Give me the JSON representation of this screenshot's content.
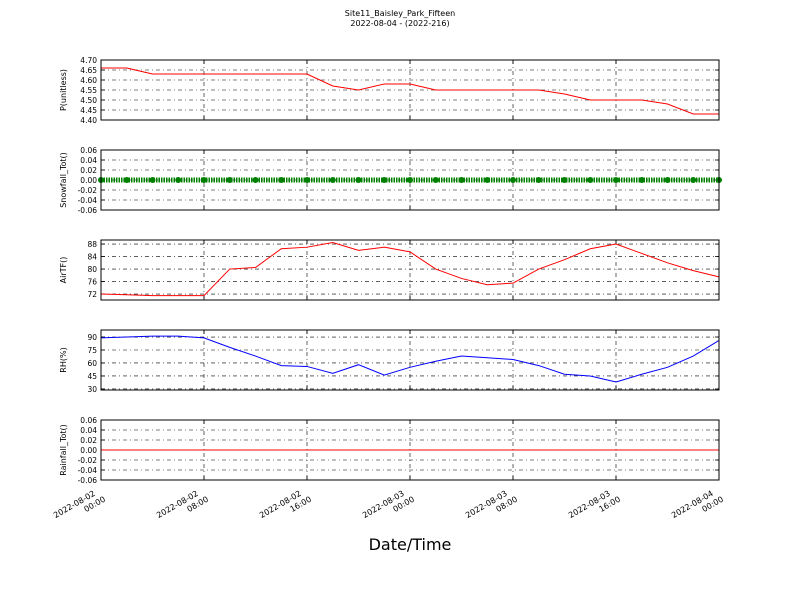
{
  "title": "Site11_Baisley_Park_Fifteen",
  "subtitle": "2022-08-04 - (2022-216)",
  "xlabel": "Date/Time",
  "chart_data": [
    {
      "type": "line",
      "ylabel": "P(unitless)",
      "color": "#ff0000",
      "grid": true,
      "x": [
        "2022-08-02 00:00",
        "2022-08-02 02:00",
        "2022-08-02 04:00",
        "2022-08-02 06:00",
        "2022-08-02 08:00",
        "2022-08-02 10:00",
        "2022-08-02 12:00",
        "2022-08-02 14:00",
        "2022-08-02 16:00",
        "2022-08-02 18:00",
        "2022-08-02 20:00",
        "2022-08-02 22:00",
        "2022-08-03 00:00",
        "2022-08-03 02:00",
        "2022-08-03 04:00",
        "2022-08-03 06:00",
        "2022-08-03 08:00",
        "2022-08-03 10:00",
        "2022-08-03 12:00",
        "2022-08-03 14:00",
        "2022-08-03 16:00",
        "2022-08-03 18:00",
        "2022-08-03 20:00",
        "2022-08-03 22:00",
        "2022-08-04 00:00"
      ],
      "values": [
        4.66,
        4.66,
        4.63,
        4.63,
        4.63,
        4.63,
        4.63,
        4.63,
        4.63,
        4.57,
        4.55,
        4.58,
        4.58,
        4.55,
        4.55,
        4.55,
        4.55,
        4.55,
        4.53,
        4.5,
        4.5,
        4.5,
        4.48,
        4.43,
        4.43
      ],
      "xlim": [
        "2022-08-02 00:00",
        "2022-08-04 00:00"
      ],
      "xticks": [
        "2022-08-02 00:00",
        "2022-08-02 08:00",
        "2022-08-02 16:00",
        "2022-08-03 00:00",
        "2022-08-03 08:00",
        "2022-08-03 16:00",
        "2022-08-04 00:00"
      ],
      "ylim": [
        4.4,
        4.7
      ],
      "yticks": [
        {
          "value": 4.4,
          "label": "4.40"
        },
        4.45,
        {
          "value": 4.5,
          "label": "4.50"
        },
        4.55,
        {
          "value": 4.6,
          "label": "4.60"
        },
        4.65,
        {
          "value": 4.7,
          "label": "4.70"
        }
      ]
    },
    {
      "type": "line",
      "style": "marker",
      "ylabel": "Snowfall_Tot()",
      "color": "#008000",
      "grid": true,
      "x": [
        "2022-08-02 00:00",
        "2022-08-02 02:00",
        "2022-08-02 04:00",
        "2022-08-02 06:00",
        "2022-08-02 08:00",
        "2022-08-02 10:00",
        "2022-08-02 12:00",
        "2022-08-02 14:00",
        "2022-08-02 16:00",
        "2022-08-02 18:00",
        "2022-08-02 20:00",
        "2022-08-02 22:00",
        "2022-08-03 00:00",
        "2022-08-03 02:00",
        "2022-08-03 04:00",
        "2022-08-03 06:00",
        "2022-08-03 08:00",
        "2022-08-03 10:00",
        "2022-08-03 12:00",
        "2022-08-03 14:00",
        "2022-08-03 16:00",
        "2022-08-03 18:00",
        "2022-08-03 20:00",
        "2022-08-03 22:00",
        "2022-08-04 00:00"
      ],
      "values": [
        0,
        0,
        0,
        0,
        0,
        0,
        0,
        0,
        0,
        0,
        0,
        0,
        0,
        0,
        0,
        0,
        0,
        0,
        0,
        0,
        0,
        0,
        0,
        0,
        0
      ],
      "xlim": [
        "2022-08-02 00:00",
        "2022-08-04 00:00"
      ],
      "xticks": [
        "2022-08-02 00:00",
        "2022-08-02 08:00",
        "2022-08-02 16:00",
        "2022-08-03 00:00",
        "2022-08-03 08:00",
        "2022-08-03 16:00",
        "2022-08-04 00:00"
      ],
      "ylim": [
        -0.06,
        0.06
      ],
      "yticks": [
        -0.06,
        -0.04,
        -0.02,
        {
          "value": 0,
          "label": "0.00"
        },
        0.02,
        0.04,
        0.06
      ]
    },
    {
      "type": "line",
      "ylabel": "AirTF()",
      "color": "#ff0000",
      "grid": true,
      "x": [
        "2022-08-02 00:00",
        "2022-08-02 02:00",
        "2022-08-02 04:00",
        "2022-08-02 06:00",
        "2022-08-02 08:00",
        "2022-08-02 10:00",
        "2022-08-02 12:00",
        "2022-08-02 14:00",
        "2022-08-02 16:00",
        "2022-08-02 18:00",
        "2022-08-02 20:00",
        "2022-08-02 22:00",
        "2022-08-03 00:00",
        "2022-08-03 02:00",
        "2022-08-03 04:00",
        "2022-08-03 06:00",
        "2022-08-03 08:00",
        "2022-08-03 10:00",
        "2022-08-03 12:00",
        "2022-08-03 14:00",
        "2022-08-03 16:00",
        "2022-08-03 18:00",
        "2022-08-03 20:00",
        "2022-08-03 22:00",
        "2022-08-04 00:00"
      ],
      "values": [
        72,
        71.8,
        71.5,
        71.5,
        71.5,
        80,
        80.5,
        86.5,
        87,
        88.5,
        86,
        87,
        85.5,
        80,
        77,
        75,
        75.5,
        80,
        83,
        86.5,
        88,
        85,
        82,
        79.5,
        77.5
      ],
      "xlim": [
        "2022-08-02 00:00",
        "2022-08-04 00:00"
      ],
      "xticks": [
        "2022-08-02 00:00",
        "2022-08-02 08:00",
        "2022-08-02 16:00",
        "2022-08-03 00:00",
        "2022-08-03 08:00",
        "2022-08-03 16:00",
        "2022-08-04 00:00"
      ],
      "ylim": [
        70.1,
        89.3
      ],
      "yticks": [
        72,
        76,
        80,
        84,
        88
      ]
    },
    {
      "type": "line",
      "ylabel": "RH(%)",
      "color": "#0000ff",
      "grid": true,
      "x": [
        "2022-08-02 00:00",
        "2022-08-02 02:00",
        "2022-08-02 04:00",
        "2022-08-02 06:00",
        "2022-08-02 08:00",
        "2022-08-02 10:00",
        "2022-08-02 12:00",
        "2022-08-02 14:00",
        "2022-08-02 16:00",
        "2022-08-02 18:00",
        "2022-08-02 20:00",
        "2022-08-02 22:00",
        "2022-08-03 00:00",
        "2022-08-03 02:00",
        "2022-08-03 04:00",
        "2022-08-03 06:00",
        "2022-08-03 08:00",
        "2022-08-03 10:00",
        "2022-08-03 12:00",
        "2022-08-03 14:00",
        "2022-08-03 16:00",
        "2022-08-03 18:00",
        "2022-08-03 20:00",
        "2022-08-03 22:00",
        "2022-08-04 00:00"
      ],
      "values": [
        89,
        90,
        91,
        91,
        89,
        78,
        68,
        57,
        56,
        48,
        58,
        46,
        55,
        62,
        68,
        66,
        64,
        57,
        47,
        45,
        38,
        47,
        55,
        68,
        86
      ],
      "xlim": [
        "2022-08-02 00:00",
        "2022-08-04 00:00"
      ],
      "xticks": [
        "2022-08-02 00:00",
        "2022-08-02 08:00",
        "2022-08-02 16:00",
        "2022-08-03 00:00",
        "2022-08-03 08:00",
        "2022-08-03 16:00",
        "2022-08-04 00:00"
      ],
      "ylim": [
        28.8,
        98.1
      ],
      "yticks": [
        30,
        45,
        60,
        75,
        90
      ]
    },
    {
      "type": "line",
      "ylabel": "Rainfall_Tot()",
      "color": "#ff0000",
      "grid": true,
      "x": [
        "2022-08-02 00:00",
        "2022-08-02 02:00",
        "2022-08-02 04:00",
        "2022-08-02 06:00",
        "2022-08-02 08:00",
        "2022-08-02 10:00",
        "2022-08-02 12:00",
        "2022-08-02 14:00",
        "2022-08-02 16:00",
        "2022-08-02 18:00",
        "2022-08-02 20:00",
        "2022-08-02 22:00",
        "2022-08-03 00:00",
        "2022-08-03 02:00",
        "2022-08-03 04:00",
        "2022-08-03 06:00",
        "2022-08-03 08:00",
        "2022-08-03 10:00",
        "2022-08-03 12:00",
        "2022-08-03 14:00",
        "2022-08-03 16:00",
        "2022-08-03 18:00",
        "2022-08-03 20:00",
        "2022-08-03 22:00",
        "2022-08-04 00:00"
      ],
      "values": [
        0,
        0,
        0,
        0,
        0,
        0,
        0,
        0,
        0,
        0,
        0,
        0,
        0,
        0,
        0,
        0,
        0,
        0,
        0,
        0,
        0,
        0,
        0,
        0,
        0
      ],
      "xlim": [
        "2022-08-02 00:00",
        "2022-08-04 00:00"
      ],
      "xticks": [
        "2022-08-02 00:00",
        "2022-08-02 08:00",
        "2022-08-02 16:00",
        "2022-08-03 00:00",
        "2022-08-03 08:00",
        "2022-08-03 16:00",
        "2022-08-04 00:00"
      ],
      "ylim": [
        -0.06,
        0.06
      ],
      "yticks": [
        -0.06,
        -0.04,
        -0.02,
        {
          "value": 0,
          "label": "0.00"
        },
        0.02,
        0.04,
        0.06
      ]
    }
  ]
}
